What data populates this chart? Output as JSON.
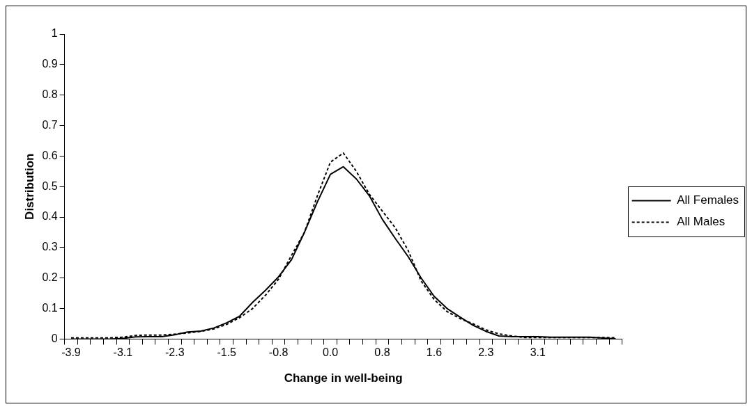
{
  "chart_data": {
    "type": "line",
    "xlabel": "Change in well-being",
    "ylabel": "Distribution",
    "categories": [
      "-3.9",
      null,
      null,
      null,
      "-3.1",
      null,
      null,
      null,
      "-2.3",
      null,
      null,
      null,
      "-1.5",
      null,
      null,
      null,
      "-0.8",
      null,
      null,
      null,
      "0.0",
      null,
      null,
      null,
      "0.8",
      null,
      null,
      null,
      "1.6",
      null,
      null,
      null,
      "2.3",
      null,
      null,
      null,
      "3.1",
      null,
      null,
      null,
      null,
      null,
      null
    ],
    "series": [
      {
        "name": "All Females",
        "color": "#000000",
        "line_style": "solid",
        "values": [
          0,
          0,
          0,
          0,
          0.002,
          0.007,
          0.008,
          0.008,
          0.014,
          0.023,
          0.026,
          0.036,
          0.053,
          0.075,
          0.12,
          0.16,
          0.204,
          0.26,
          0.35,
          0.45,
          0.54,
          0.565,
          0.525,
          0.47,
          0.393,
          0.33,
          0.27,
          0.2,
          0.14,
          0.1,
          0.072,
          0.045,
          0.025,
          0.01,
          0.008,
          0.008,
          0.008,
          0.006,
          0.006,
          0.006,
          0.006,
          0.003,
          0.001
        ]
      },
      {
        "name": "All Males",
        "color": "#000000",
        "line_style": "dashed",
        "values": [
          0.004,
          0.004,
          0.004,
          0.004,
          0.006,
          0.012,
          0.013,
          0.013,
          0.016,
          0.02,
          0.025,
          0.033,
          0.048,
          0.07,
          0.1,
          0.144,
          0.196,
          0.274,
          0.35,
          0.47,
          0.58,
          0.61,
          0.55,
          0.475,
          0.42,
          0.365,
          0.29,
          0.19,
          0.13,
          0.09,
          0.067,
          0.05,
          0.03,
          0.017,
          0.01,
          0.005,
          0.005,
          0.005,
          0.005,
          0.005,
          0.005,
          0.005,
          0.004
        ]
      }
    ],
    "ylim": [
      0,
      1
    ],
    "yticks": [
      0,
      0.1,
      0.2,
      0.3,
      0.4,
      0.5,
      0.6,
      0.7,
      0.8,
      0.9,
      1
    ],
    "grid": false,
    "legend": "right",
    "marker": "none"
  }
}
